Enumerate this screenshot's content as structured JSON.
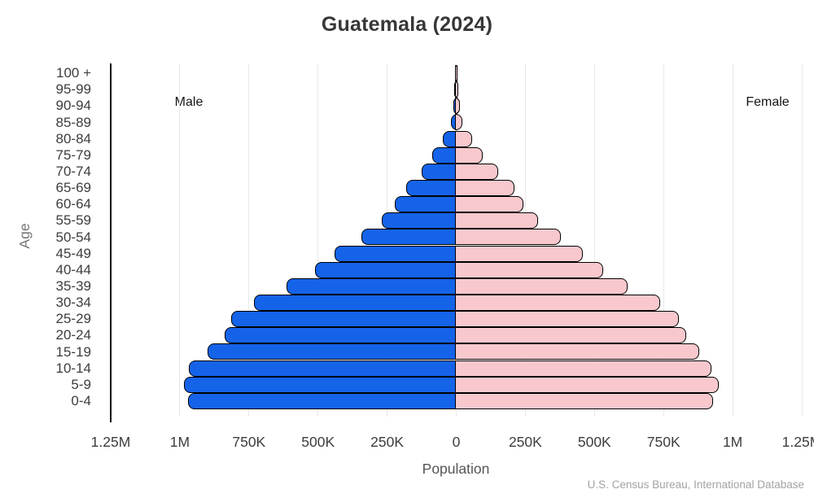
{
  "title": "Guatemala (2024)",
  "labels": {
    "male": "Male",
    "female": "Female",
    "age_axis": "Age",
    "population_axis": "Population"
  },
  "source": "U.S. Census Bureau, International Database",
  "colors": {
    "male_bar": "#1563e8",
    "female_bar": "#f8c8cd",
    "bar_outline": "#000000",
    "gridline": "#e8e8e8",
    "axis_spine": "#000000"
  },
  "chart_data": {
    "type": "bar",
    "subtype": "population-pyramid",
    "title": "Guatemala (2024)",
    "xlabel": "Population",
    "ylabel": "Age",
    "grid": true,
    "xlim": [
      -1250000,
      1250000
    ],
    "x_ticks": {
      "values": [
        -1250000,
        -1000000,
        -750000,
        -500000,
        -250000,
        0,
        250000,
        500000,
        750000,
        1000000,
        1250000
      ],
      "labels": [
        "1.25M",
        "1M",
        "750K",
        "500K",
        "250K",
        "0",
        "250K",
        "500K",
        "750K",
        "1M",
        "1.25M"
      ]
    },
    "category_order": "top-to-bottom",
    "categories": [
      "100 +",
      "95-99",
      "90-94",
      "85-89",
      "80-84",
      "75-79",
      "70-74",
      "65-69",
      "60-64",
      "55-59",
      "50-54",
      "45-49",
      "40-44",
      "35-39",
      "30-34",
      "25-29",
      "20-24",
      "15-19",
      "10-14",
      "5-9",
      "0-4"
    ],
    "series": [
      {
        "name": "Male",
        "side": "left",
        "values": [
          500,
          2000,
          6000,
          16000,
          43000,
          84000,
          122000,
          178000,
          219000,
          266000,
          340000,
          437000,
          508000,
          610000,
          728000,
          810000,
          834000,
          895000,
          963000,
          981000,
          966000
        ]
      },
      {
        "name": "Female",
        "side": "right",
        "values": [
          1000,
          3000,
          8000,
          19000,
          52000,
          93000,
          149000,
          207000,
          240000,
          293000,
          375000,
          454000,
          528000,
          616000,
          734000,
          801000,
          828000,
          875000,
          919000,
          946000,
          925000
        ]
      }
    ],
    "legend_position": "inside-top-corners"
  }
}
